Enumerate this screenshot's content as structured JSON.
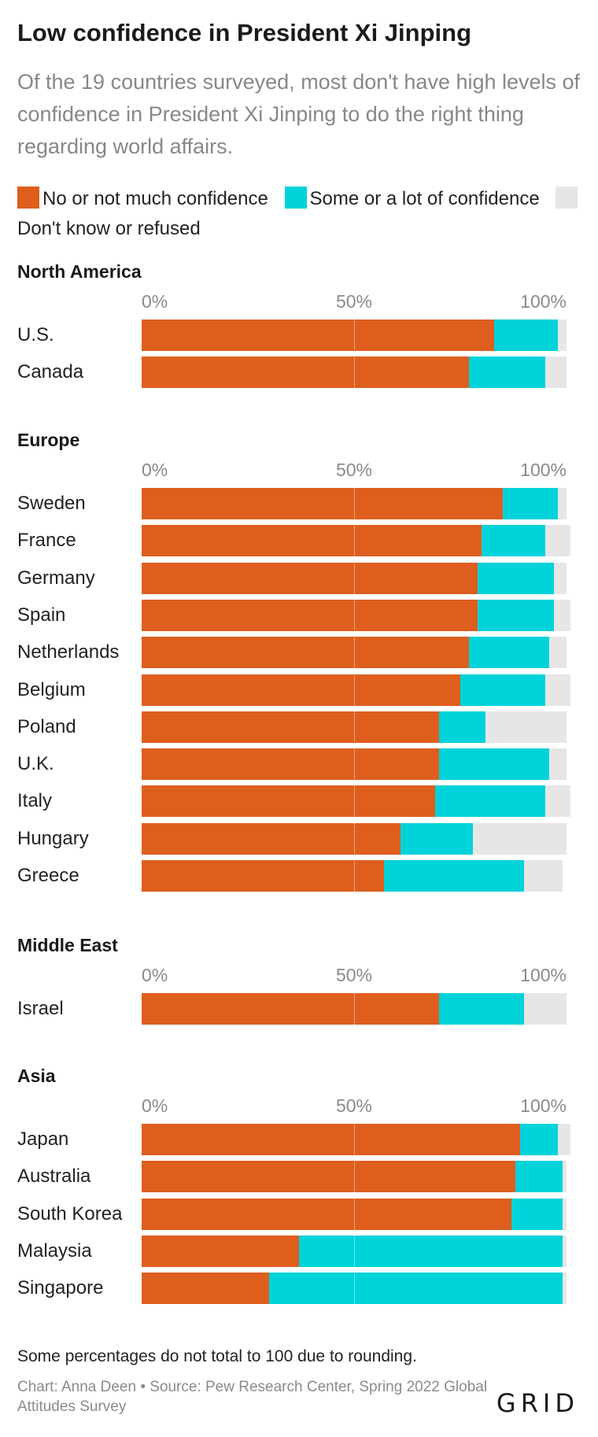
{
  "title": "Low confidence in President Xi Jinping",
  "subtitle": "Of the 19 countries surveyed, most don't have high levels of confidence in President Xi Jinping to do the right thing regarding world affairs.",
  "legend": [
    {
      "label": "No or not much confidence",
      "color": "#de5e1e"
    },
    {
      "label": "Some or a lot of confidence",
      "color": "#00d3d9"
    },
    {
      "label": "Don't know or refused",
      "color": "#e6e6e6"
    }
  ],
  "note": "Some percentages do not total to 100 due to rounding.",
  "credit": "Chart: Anna Deen • Source: Pew Research Center, Spring 2022 Global Attitudes Survey",
  "logo": "GRID",
  "chart_data": {
    "type": "bar",
    "stacked": true,
    "orientation": "horizontal",
    "xlim": [
      0,
      100
    ],
    "ticks": [
      "0%",
      "50%",
      "100%"
    ],
    "series_colors": [
      "#de5e1e",
      "#00d3d9",
      "#e6e6e6"
    ],
    "groups": [
      {
        "name": "North America",
        "rows": [
          {
            "country": "U.S.",
            "values": [
              83,
              15,
              2
            ]
          },
          {
            "country": "Canada",
            "values": [
              77,
              18,
              5
            ]
          }
        ]
      },
      {
        "name": "Europe",
        "rows": [
          {
            "country": "Sweden",
            "values": [
              85,
              13,
              2
            ]
          },
          {
            "country": "France",
            "values": [
              80,
              15,
              6
            ]
          },
          {
            "country": "Germany",
            "values": [
              79,
              18,
              3
            ]
          },
          {
            "country": "Spain",
            "values": [
              79,
              18,
              4
            ]
          },
          {
            "country": "Netherlands",
            "values": [
              77,
              19,
              4
            ]
          },
          {
            "country": "Belgium",
            "values": [
              75,
              20,
              6
            ]
          },
          {
            "country": "Poland",
            "values": [
              70,
              11,
              19
            ]
          },
          {
            "country": "U.K.",
            "values": [
              70,
              26,
              4
            ]
          },
          {
            "country": "Italy",
            "values": [
              69,
              26,
              6
            ]
          },
          {
            "country": "Hungary",
            "values": [
              61,
              17,
              22
            ]
          },
          {
            "country": "Greece",
            "values": [
              57,
              33,
              9
            ]
          }
        ]
      },
      {
        "name": "Middle East",
        "rows": [
          {
            "country": "Israel",
            "values": [
              70,
              20,
              10
            ]
          }
        ]
      },
      {
        "name": "Asia",
        "rows": [
          {
            "country": "Japan",
            "values": [
              89,
              9,
              3
            ]
          },
          {
            "country": "Australia",
            "values": [
              88,
              11,
              1
            ]
          },
          {
            "country": "South Korea",
            "values": [
              87,
              12,
              1
            ]
          },
          {
            "country": "Malaysia",
            "values": [
              37,
              62,
              1
            ]
          },
          {
            "country": "Singapore",
            "values": [
              30,
              69,
              1
            ]
          }
        ]
      }
    ]
  }
}
